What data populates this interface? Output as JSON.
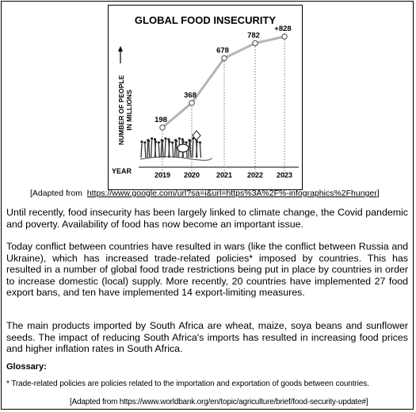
{
  "chart_data": {
    "type": "line",
    "title": "GLOBAL FOOD INSECURITY",
    "ylabel_line1": "NUMBER OF PEOPLE",
    "ylabel_line2": "IN MILLIONS",
    "xlabel": "YEAR",
    "categories": [
      "2019",
      "2020",
      "2021",
      "2022",
      "2023"
    ],
    "values": [
      198,
      368,
      678,
      782,
      828
    ],
    "data_labels": [
      "198",
      "368",
      "678",
      "782",
      "+828"
    ],
    "ylim": [
      0,
      900
    ],
    "grid": false,
    "line_color": "#b4b4b4"
  },
  "source1": {
    "prefix": "[Adapted from",
    "url": "https://www.google.com/url?sa=i&url=https%3A%2F%-infographics%2Fhunger",
    "suffix": "]"
  },
  "paragraphs": [
    "Until recently, food insecurity has been largely linked to climate change, the Covid pandemic and poverty. Availability of food has now become an important issue.",
    "Today conflict between countries have resulted in wars (like the conflict between Russia and Ukraine), which has increased trade-related policies* imposed by countries. This has resulted in a number of global food trade restrictions being put in place by countries in order to increase domestic (local) supply. More recently, 20 countries have implemented 27 food export bans, and ten have implemented 14 export-limiting measures.",
    "The main products imported by South Africa are wheat, maize, soya beans and sunflower seeds. The impact of reducing South Africa's imports has resulted in increasing food prices and higher inflation rates in South Africa."
  ],
  "glossary": {
    "heading": "Glossary:",
    "note": "* Trade-related policies are policies related to the importation and exportation of goods between countries."
  },
  "source2": {
    "text": "[Adapted from https://www.worldbank.org/en/topic/agriculture/brief/food-security-update#]"
  }
}
